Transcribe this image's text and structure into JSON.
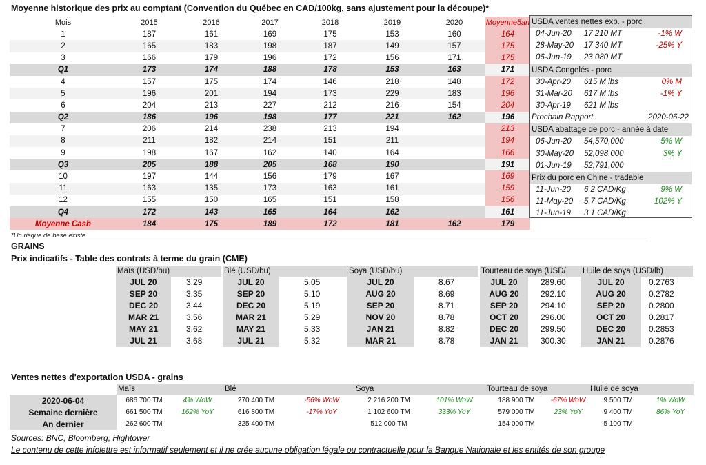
{
  "title": "Moyenne historique des prix au comptant (Convention du Québec en CAD/100kg, sans ajustement pour la découpe)*",
  "price_table": {
    "headers": [
      "Mois",
      "2015",
      "2016",
      "2017",
      "2018",
      "2019",
      "2020",
      "Moyenne5an"
    ],
    "rows": [
      {
        "type": "odd",
        "cells": [
          "1",
          "187",
          "161",
          "169",
          "175",
          "153",
          "160",
          "164"
        ]
      },
      {
        "type": "even",
        "cells": [
          "2",
          "165",
          "183",
          "198",
          "187",
          "149",
          "157",
          "175"
        ]
      },
      {
        "type": "odd",
        "cells": [
          "3",
          "166",
          "179",
          "196",
          "172",
          "156",
          "171",
          "175"
        ]
      },
      {
        "type": "q",
        "cells": [
          "Q1",
          "173",
          "174",
          "188",
          "178",
          "153",
          "163",
          "171"
        ]
      },
      {
        "type": "odd",
        "cells": [
          "4",
          "157",
          "175",
          "174",
          "146",
          "218",
          "148",
          "172"
        ]
      },
      {
        "type": "even",
        "cells": [
          "5",
          "196",
          "201",
          "194",
          "173",
          "229",
          "183",
          "196"
        ]
      },
      {
        "type": "odd",
        "cells": [
          "6",
          "204",
          "213",
          "227",
          "212",
          "216",
          "154",
          "204"
        ]
      },
      {
        "type": "q",
        "cells": [
          "Q2",
          "186",
          "196",
          "198",
          "177",
          "221",
          "162",
          "196"
        ]
      },
      {
        "type": "odd",
        "cells": [
          "7",
          "206",
          "214",
          "238",
          "213",
          "194",
          "",
          "213"
        ]
      },
      {
        "type": "even",
        "cells": [
          "8",
          "211",
          "182",
          "214",
          "151",
          "211",
          "",
          "194"
        ]
      },
      {
        "type": "odd",
        "cells": [
          "9",
          "198",
          "167",
          "162",
          "140",
          "164",
          "",
          "166"
        ]
      },
      {
        "type": "q",
        "cells": [
          "Q3",
          "205",
          "188",
          "205",
          "168",
          "190",
          "",
          "191"
        ]
      },
      {
        "type": "odd",
        "cells": [
          "10",
          "197",
          "144",
          "156",
          "179",
          "167",
          "",
          "169"
        ]
      },
      {
        "type": "even",
        "cells": [
          "11",
          "163",
          "135",
          "173",
          "163",
          "161",
          "",
          "159"
        ]
      },
      {
        "type": "odd",
        "cells": [
          "12",
          "155",
          "150",
          "165",
          "151",
          "158",
          "",
          "156"
        ]
      },
      {
        "type": "q",
        "cells": [
          "Q4",
          "172",
          "143",
          "165",
          "164",
          "162",
          "",
          "161"
        ]
      },
      {
        "type": "cash",
        "cells": [
          "Moyenne Cash",
          "184",
          "175",
          "189",
          "172",
          "181",
          "162",
          "179"
        ]
      }
    ]
  },
  "note": "*Un risque de base existe",
  "usda_panel": {
    "sections": [
      {
        "title": "USDA ventes nettes exp. - porc",
        "rows": [
          {
            "date": "04-Jun-20",
            "value": "17 210  MT",
            "pct": "-1% W",
            "color": "red"
          },
          {
            "date": "28-May-20",
            "value": "17 340  MT",
            "pct": "-25% Y",
            "color": "red"
          },
          {
            "date": "06-Jun-19",
            "value": "23 080  MT",
            "pct": "",
            "color": ""
          }
        ]
      },
      {
        "title": "USDA Congelés - porc",
        "rows": [
          {
            "date": "30-Apr-20",
            "value": "615 M lbs",
            "pct": "0% M",
            "color": "red"
          },
          {
            "date": "31-Mar-20",
            "value": "617 M lbs",
            "pct": "-1% Y",
            "color": "red"
          },
          {
            "date": "30-Apr-19",
            "value": "621 M lbs",
            "pct": "",
            "color": ""
          }
        ]
      },
      {
        "title": "",
        "rows": [
          {
            "date": "Prochain Rapport",
            "value": "",
            "pct": "2020-06-22",
            "color": ""
          }
        ]
      },
      {
        "title": "USDA abattage de porc - année à date",
        "rows": [
          {
            "date": "06-Jun-20",
            "value": "54,570,000",
            "pct": "5% W",
            "color": "green"
          },
          {
            "date": "30-May-20",
            "value": "52,098,000",
            "pct": "3% Y",
            "color": "green"
          },
          {
            "date": "01-Jun-19",
            "value": "52,791,000",
            "pct": "",
            "color": ""
          }
        ]
      },
      {
        "title": "Prix du porc en Chine - tradable",
        "rows": [
          {
            "date": "11-Jun-20",
            "value": "6.2 CAD/Kg",
            "pct": "9% W",
            "color": "green"
          },
          {
            "date": "11-May-20",
            "value": "5.7 CAD/Kg",
            "pct": "102% Y",
            "color": "green"
          },
          {
            "date": "11-Jun-19",
            "value": "3.1 CAD/Kg",
            "pct": "",
            "color": ""
          }
        ]
      }
    ]
  },
  "grains": {
    "title": "GRAINS",
    "subtitle": "Prix indicatifs - Table des contrats à terme du grain (CME)",
    "blocks": [
      {
        "name": "Maïs (USD/bu)",
        "rows": [
          [
            "JUL 20",
            "3.29"
          ],
          [
            "SEP 20",
            "3.35"
          ],
          [
            "DEC 20",
            "3.44"
          ],
          [
            "MAR 21",
            "3.56"
          ],
          [
            "MAY 21",
            "3.62"
          ],
          [
            "JUL 21",
            "3.68"
          ]
        ]
      },
      {
        "name": "Blé (USD/bu)",
        "rows": [
          [
            "JUL 20",
            "5.05"
          ],
          [
            "SEP 20",
            "5.10"
          ],
          [
            "DEC 20",
            "5.19"
          ],
          [
            "MAR 21",
            "5.29"
          ],
          [
            "MAY 21",
            "5.33"
          ],
          [
            "JUL 21",
            "5.32"
          ]
        ]
      },
      {
        "name": "Soya (USD/bu)",
        "rows": [
          [
            "JUL 20",
            "8.67"
          ],
          [
            "AUG 20",
            "8.69"
          ],
          [
            "SEP 20",
            "8.71"
          ],
          [
            "NOV 20",
            "8.78"
          ],
          [
            "JAN 21",
            "8.82"
          ],
          [
            "MAR 21",
            "8.78"
          ]
        ]
      },
      {
        "name": "Tourteau de soya (USD/",
        "rows": [
          [
            "JUL 20",
            "289.60"
          ],
          [
            "AUG 20",
            "292.10"
          ],
          [
            "SEP 20",
            "294.10"
          ],
          [
            "OCT 20",
            "296.00"
          ],
          [
            "DEC 20",
            "299.50"
          ],
          [
            "JAN 21",
            "300.30"
          ]
        ]
      },
      {
        "name": "Huile de soya (USD/lb)",
        "rows": [
          [
            "JUL 20",
            "0.2763"
          ],
          [
            "AUG 20",
            "0.2782"
          ],
          [
            "SEP 20",
            "0.2800"
          ],
          [
            "OCT 20",
            "0.2817"
          ],
          [
            "DEC 20",
            "0.2853"
          ],
          [
            "JAN 21",
            "0.2876"
          ]
        ]
      }
    ]
  },
  "exports": {
    "title": "Ventes nettes d'exportation USDA - grains",
    "headers": [
      "Maïs",
      "Blé",
      "Soya",
      "Tourteau de soya",
      "Huile de soya"
    ],
    "rows": [
      {
        "label": "2020-06-04",
        "cells": [
          [
            "686 700 TM",
            "4% WoW",
            "green"
          ],
          [
            "270 400 TM",
            "-56% WoW",
            "red"
          ],
          [
            "2 216 200 TM",
            "101% WoW",
            "green"
          ],
          [
            "188 900 TM",
            "-67% WoW",
            "red"
          ],
          [
            "9 500 TM",
            "1% WoW",
            "green"
          ]
        ]
      },
      {
        "label": "Semaine dernière",
        "cells": [
          [
            "661 500 TM",
            "162% YoY",
            "green"
          ],
          [
            "616 800 TM",
            "-17% YoY",
            "red"
          ],
          [
            "1 102 600 TM",
            "333% YoY",
            "green"
          ],
          [
            "579 000 TM",
            "23% YoY",
            "green"
          ],
          [
            "9 400 TM",
            "86% YoY",
            "green"
          ]
        ]
      },
      {
        "label": "An dernier",
        "cells": [
          [
            "262 600 TM",
            "",
            ""
          ],
          [
            "325 400 TM",
            "",
            ""
          ],
          [
            "512 000 TM",
            "",
            ""
          ],
          [
            "154 000 TM",
            "",
            ""
          ],
          [
            "5 100 TM",
            "",
            ""
          ]
        ]
      }
    ]
  },
  "sources": "Sources: BNC, Bloomberg, Hightower",
  "disclaimer": "Le contenu de cette infolettre est informatif seulement et il ne crée aucune obligation légale ou contractuelle pour la Banque Nationale et les entités de son groupe"
}
